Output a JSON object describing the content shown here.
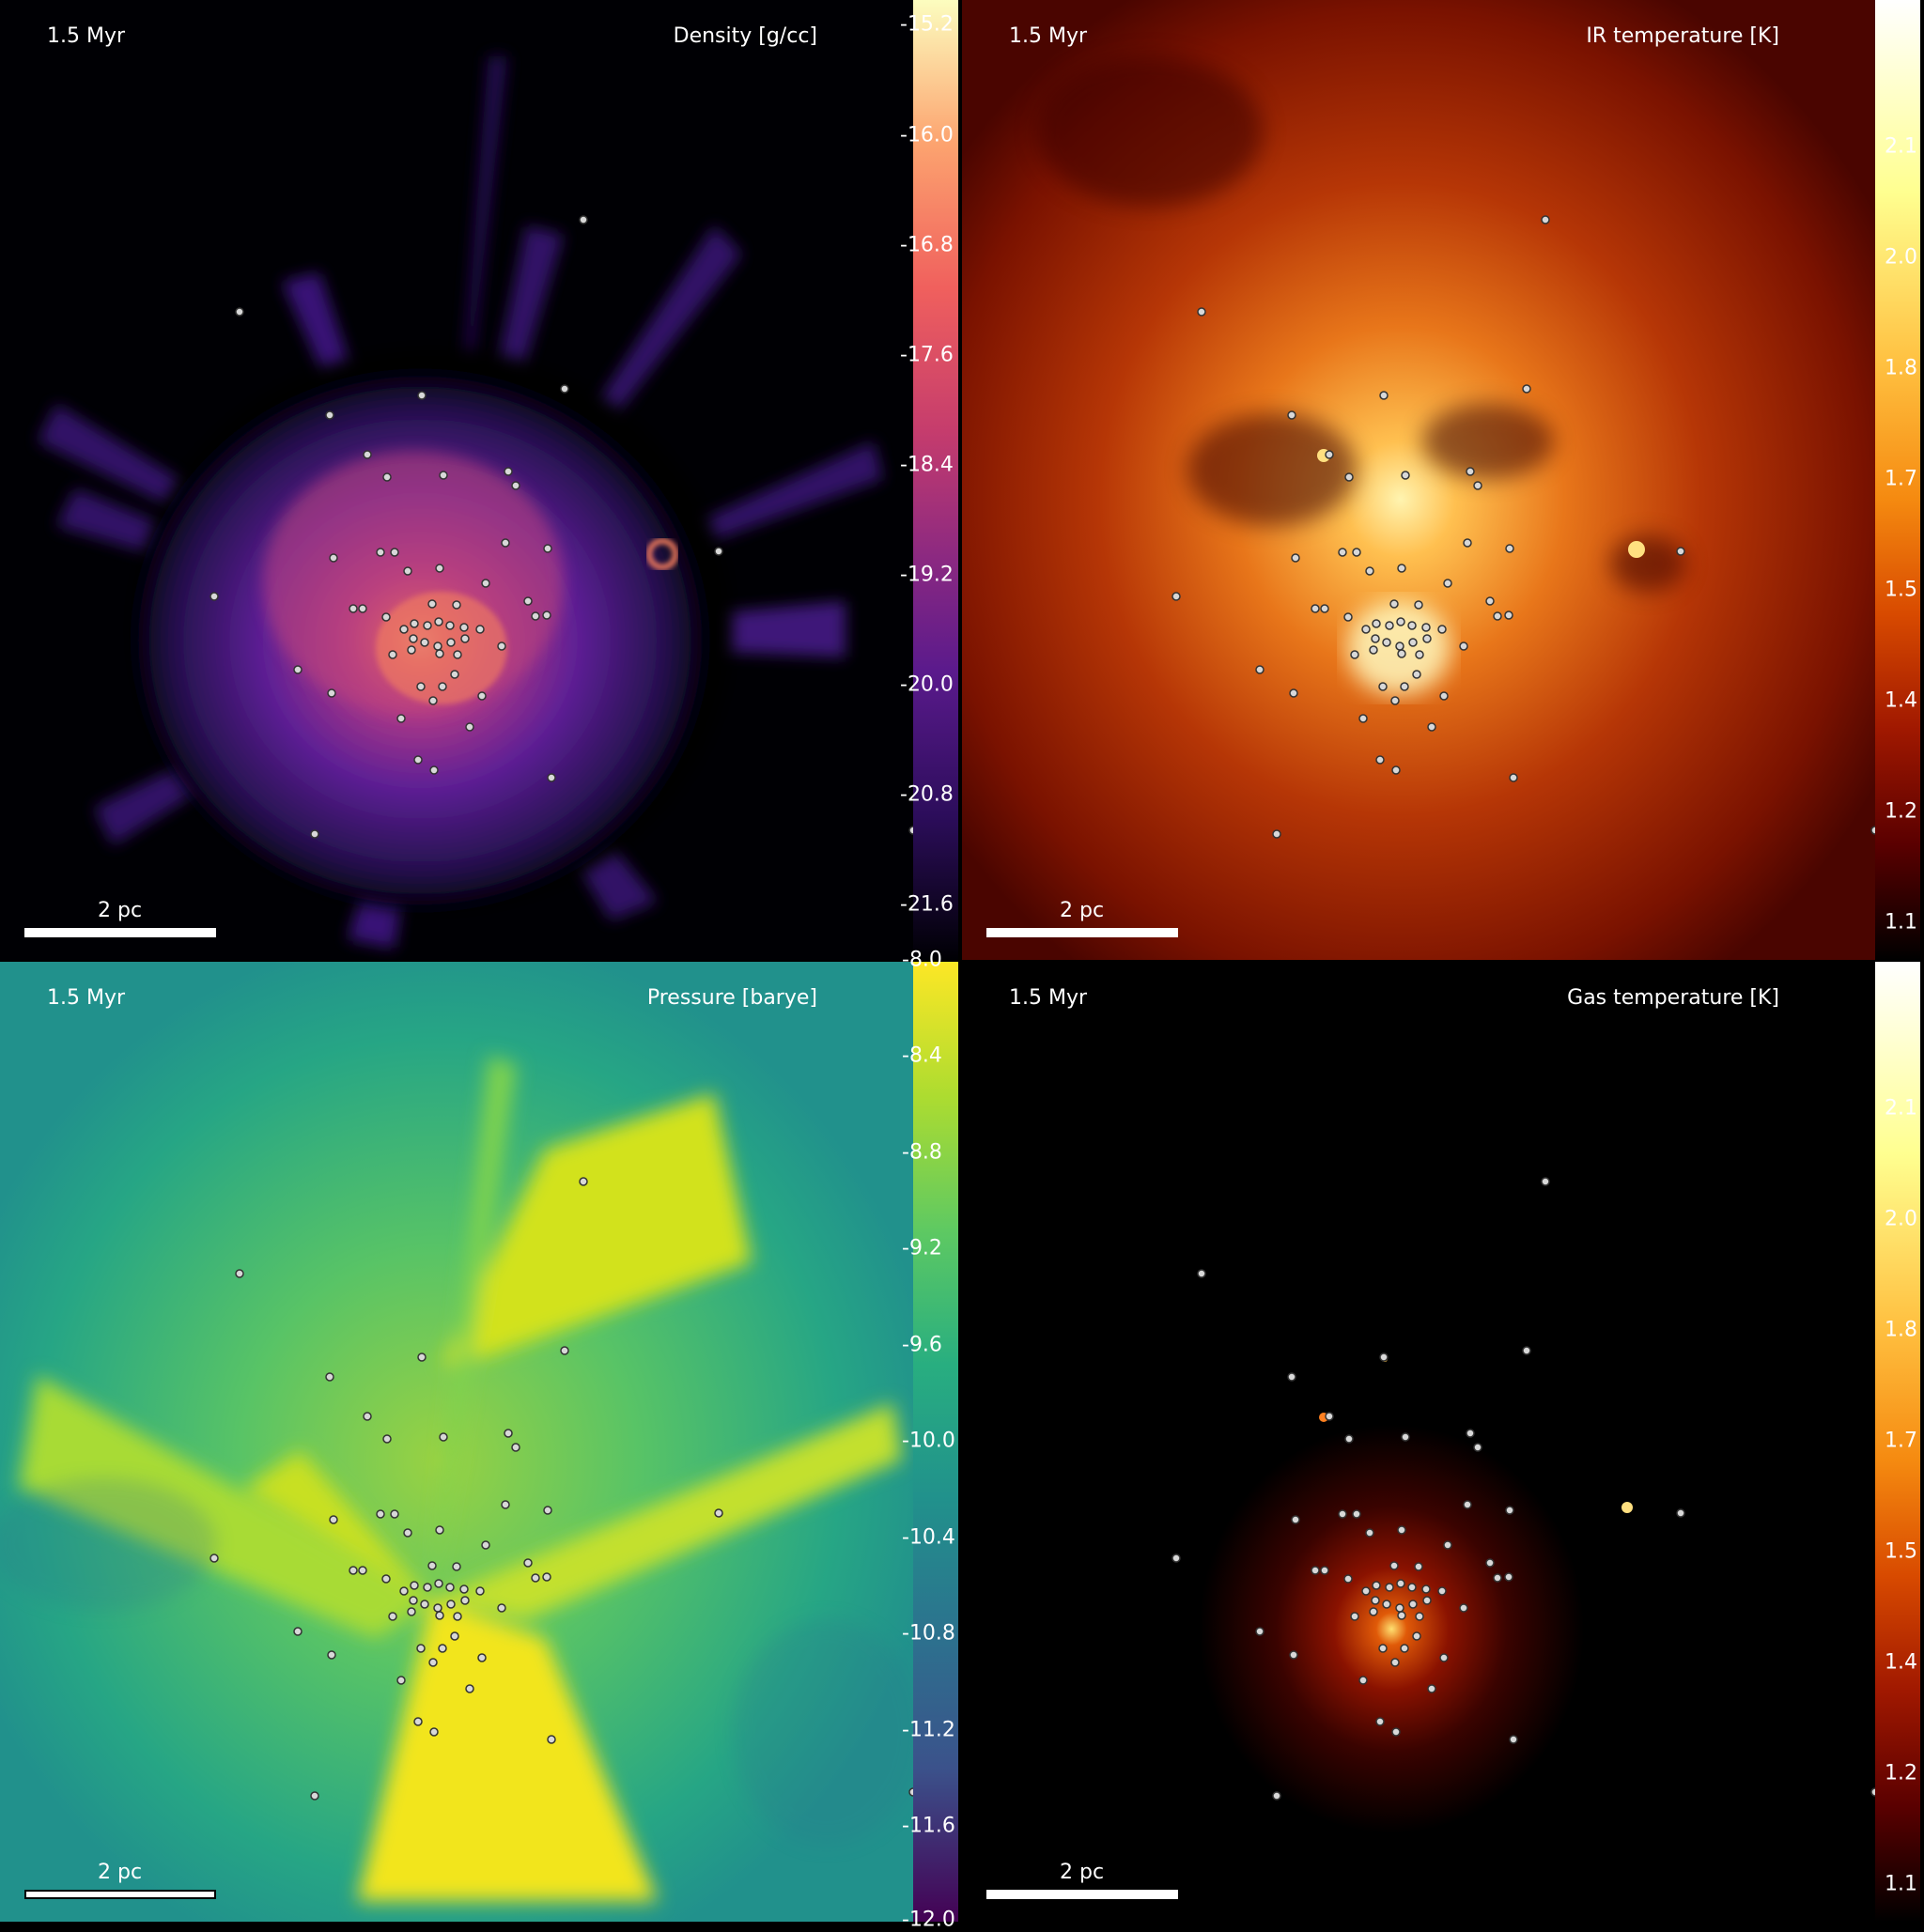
{
  "panels": {
    "density": {
      "time": "1.5 Myr",
      "quantity": "Density [g/cc]",
      "scale": "2 pc",
      "ticks": [
        "-15.2",
        "-16.0",
        "-16.8",
        "-17.6",
        "-18.4",
        "-19.2",
        "-20.0",
        "-20.8",
        "-21.6"
      ],
      "colors": [
        "#000004",
        "#2c0d5b",
        "#5a1a8c",
        "#8c2981",
        "#c53c6d",
        "#f0605d",
        "#fca36f",
        "#fcfdbf"
      ]
    },
    "ir_temp": {
      "time": "1.5 Myr",
      "quantity": "IR temperature [K]",
      "scale": "2 pc",
      "ticks": [
        "2.1",
        "2.0",
        "1.8",
        "1.7",
        "1.5",
        "1.4",
        "1.2",
        "1.1"
      ],
      "colors": [
        "#000000",
        "#5a0000",
        "#a01800",
        "#d84a00",
        "#f58a10",
        "#ffc040",
        "#ffff90",
        "#ffffff"
      ]
    },
    "pressure": {
      "time": "1.5 Myr",
      "quantity": "Pressure [barye]",
      "scale": "2 pc",
      "ticks": [
        "-8.0",
        "-8.4",
        "-8.8",
        "-9.2",
        "-9.6",
        "-10.0",
        "-10.4",
        "-10.8",
        "-11.2",
        "-11.6",
        "-12.0"
      ],
      "colors": [
        "#440154",
        "#3b528b",
        "#2c728e",
        "#21918c",
        "#28ae80",
        "#5ec962",
        "#addc30",
        "#fde725"
      ]
    },
    "gas_temp": {
      "time": "1.5 Myr",
      "quantity": "Gas temperature [K]",
      "scale": "2 pc",
      "ticks": [
        "2.1",
        "2.0",
        "1.8",
        "1.7",
        "1.5",
        "1.4",
        "1.2",
        "1.1"
      ],
      "colors": [
        "#000000",
        "#5a0000",
        "#a01800",
        "#d84a00",
        "#f58a10",
        "#ffc040",
        "#ffff90",
        "#ffffff"
      ]
    }
  }
}
